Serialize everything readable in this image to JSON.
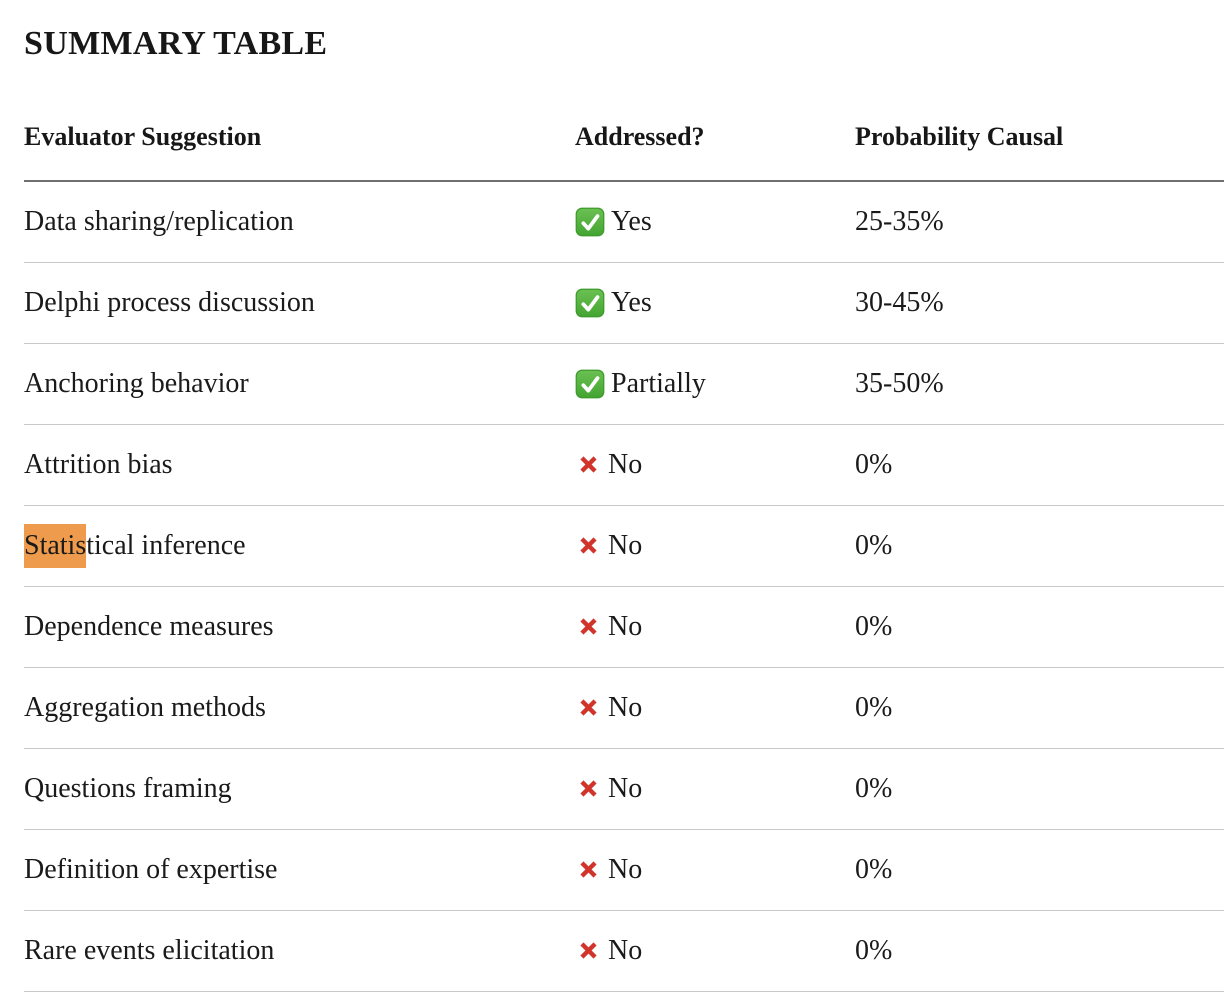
{
  "page": {
    "title": "SUMMARY TABLE"
  },
  "table": {
    "headers": [
      "Evaluator Suggestion",
      "Addressed?",
      "Probability Causal"
    ],
    "rows": [
      {
        "label": "Data sharing/replication",
        "status_icon": "check-green-icon",
        "status": "Yes",
        "probability": "25-35%"
      },
      {
        "label": "Delphi process discussion",
        "status_icon": "check-green-icon",
        "status": "Yes",
        "probability": "30-45%"
      },
      {
        "label": "Anchoring behavior",
        "status_icon": "check-green-icon",
        "status": "Partially",
        "probability": "35-50%"
      },
      {
        "label": "Attrition bias",
        "status_icon": "cross-red-icon",
        "status": "No",
        "probability": "0%"
      },
      {
        "label": "Statistical inference",
        "highlighted_prefix": "Statis",
        "label_rest": "tical inference",
        "status_icon": "cross-red-icon",
        "status": "No",
        "probability": "0%"
      },
      {
        "label": "Dependence measures",
        "status_icon": "cross-red-icon",
        "status": "No",
        "probability": "0%"
      },
      {
        "label": "Aggregation methods",
        "status_icon": "cross-red-icon",
        "status": "No",
        "probability": "0%"
      },
      {
        "label": "Questions framing",
        "status_icon": "cross-red-icon",
        "status": "No",
        "probability": "0%"
      },
      {
        "label": "Definition of expertise",
        "status_icon": "cross-red-icon",
        "status": "No",
        "probability": "0%"
      },
      {
        "label": "Rare events elicitation",
        "status_icon": "cross-red-icon",
        "status": "No",
        "probability": "0%"
      }
    ]
  },
  "colors": {
    "highlight_orange": "#EE9B4D",
    "check_green_top": "#6BC153",
    "check_green_bottom": "#43A431",
    "cross_red": "#D1342B",
    "text": "#1A1A1A",
    "header_border": "#6F6F6F",
    "row_border": "#C8C8C8",
    "background": "#FFFFFF"
  }
}
